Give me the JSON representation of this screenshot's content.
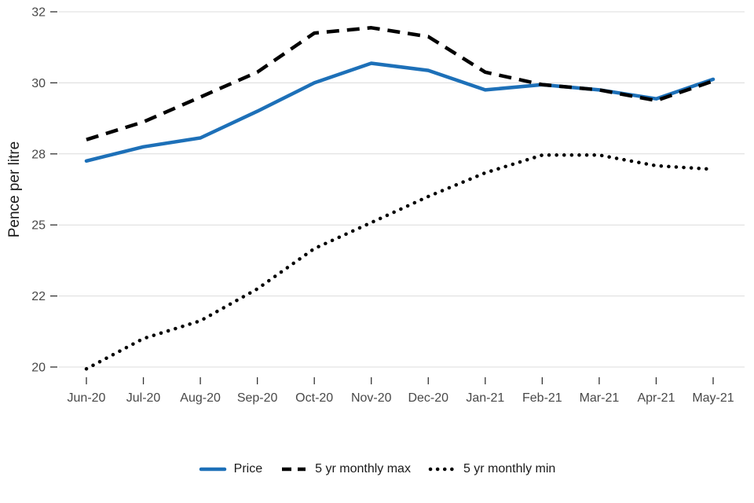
{
  "chart_data": {
    "type": "line",
    "ylabel": "Pence per litre",
    "xlabel": "",
    "x": [
      "Jun-20",
      "Jul-20",
      "Aug-20",
      "Sep-20",
      "Oct-20",
      "Nov-20",
      "Dec-20",
      "Jan-21",
      "Feb-21",
      "Mar-21",
      "Apr-21",
      "May-21"
    ],
    "yticks": [
      20,
      22,
      25,
      28,
      30,
      32
    ],
    "ylim": [
      19.8,
      32.2
    ],
    "grid": true,
    "breaks_evenly_spaced": true,
    "legend_position": "bottom",
    "series": [
      {
        "name": "Price",
        "style": "solid",
        "color": "#1d70b8",
        "values": [
          27.7,
          28.2,
          28.45,
          29.2,
          30.0,
          30.55,
          30.35,
          29.8,
          29.95,
          29.8,
          29.55,
          30.1
        ]
      },
      {
        "name": "5 yr monthly max",
        "style": "dashed",
        "color": "#000000",
        "values": [
          28.4,
          28.9,
          29.6,
          30.3,
          31.4,
          31.55,
          31.3,
          30.3,
          29.95,
          29.8,
          29.5,
          30.05
        ]
      },
      {
        "name": "5 yr monthly min",
        "style": "dotted",
        "color": "#000000",
        "values": [
          19.95,
          20.8,
          21.3,
          22.3,
          24.0,
          25.1,
          26.2,
          27.2,
          27.95,
          27.95,
          27.5,
          27.35
        ]
      }
    ]
  },
  "colors": {
    "background": "#ffffff",
    "grid": "#dcdcdc",
    "tick": "#333333",
    "tick_label": "#484848",
    "axis_title": "#1a1a1a",
    "legend_text": "#1a1a1a",
    "price_blue": "#1d70b8"
  }
}
